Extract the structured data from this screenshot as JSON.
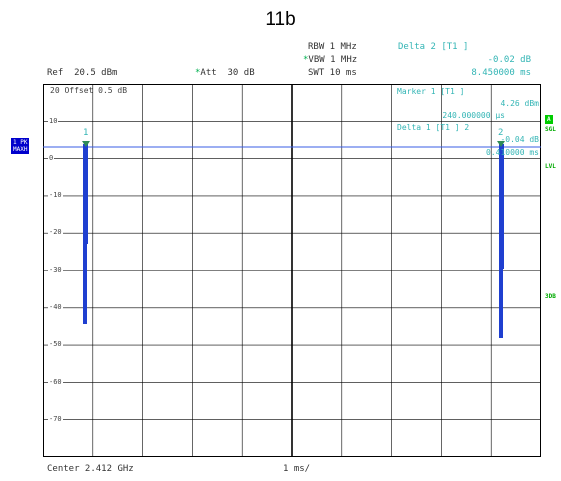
{
  "figure_title": "11b",
  "header": {
    "ref_level": "Ref  20.5 dBm",
    "att_mark": "*",
    "att": "Att  30 dB",
    "rbw": "RBW 1 MHz",
    "vbw_mark": "*",
    "vbw": "VBW 1 MHz",
    "swt": "SWT 10 ms"
  },
  "delta2": {
    "title": "Delta 2 [T1 ]",
    "level": "-0.02 dB",
    "time": "8.450000 ms"
  },
  "grid_overlay": {
    "offset_label": "20 Offset  0.5 dB",
    "y_labels": [
      "10",
      "0",
      "-10",
      "-20",
      "-30",
      "-40",
      "-50",
      "-60",
      "-70"
    ]
  },
  "marker1": {
    "title": "Marker 1 [T1 ]",
    "level": "4.26 dBm",
    "time": "240.000000 µs"
  },
  "delta1": {
    "title": "Delta 1 [T1 ] 2",
    "level": "-0.04 dB",
    "time": "0.410000 ms"
  },
  "marker_labels": {
    "m1": "1",
    "m2": "2"
  },
  "left_side": {
    "trace_badge_line1": "1 PK",
    "trace_badge_line2": "MAXH"
  },
  "right_side": {
    "a_box": "A",
    "sgl": "SGL",
    "lvl": "LVL",
    "three_db": "3DB"
  },
  "footer": {
    "center": "Center 2.412 GHz",
    "span": "1 ms/"
  },
  "colors": {
    "trace": "#1f3fd0",
    "marker": "#33b5b5",
    "ref_line": "#3a5ce6",
    "grid": "#000000"
  },
  "trace_summary": {
    "peak1_x_ms": 0.24,
    "peak1_level_dbm": 4.26,
    "peak1_bottom_dbm": -42,
    "peak2_x_ms": 8.69,
    "peak2_level_dbm": 4.24,
    "peak2_bottom_dbm": -46,
    "floor": "not shown (below -80)"
  }
}
